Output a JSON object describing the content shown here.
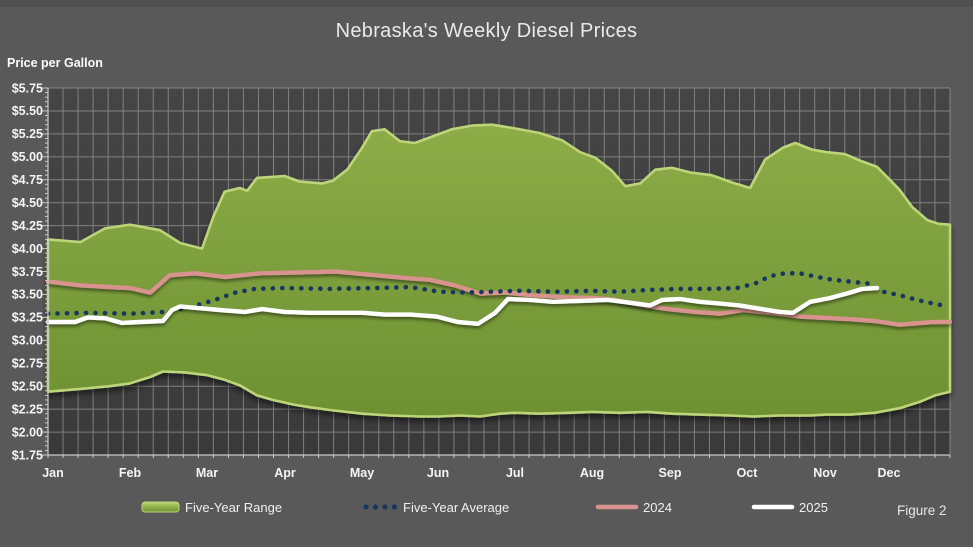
{
  "header": {
    "title": "Nebraska's Weekly Diesel Prices"
  },
  "figure_label": "Figure 2",
  "chart_data": {
    "type": "area",
    "title": "Nebraska's Weekly Diesel Prices",
    "ylabel": "Price per Gallon",
    "figure_label": "Figure 2",
    "x_unit": "month position (0 = start of Jan, 12 = right edge of plot, late December)",
    "month_labels": [
      "Jan",
      "Feb",
      "Mar",
      "Apr",
      "May",
      "Jun",
      "Jul",
      "Aug",
      "Sep",
      "Oct",
      "Nov",
      "Dec"
    ],
    "ylim": [
      1.75,
      5.75
    ],
    "y_tick_step": 0.25,
    "y_tick_labels": [
      "$5.75",
      "$5.50",
      "$5.25",
      "$5.00",
      "$4.75",
      "$4.50",
      "$4.25",
      "$4.00",
      "$3.75",
      "$3.50",
      "$3.25",
      "$3.00",
      "$2.75",
      "$2.50",
      "$2.25",
      "$2.00",
      "$1.75"
    ],
    "grid": "on",
    "legend_position": "bottom",
    "colors": {
      "background": "#595959",
      "plot_background": "#3d3d3d",
      "gridline": "#a9a9a9",
      "range_fill": "#7ca03c",
      "range_edge": "#bdd57a",
      "average": "#17375e",
      "y2024": "#d9938f",
      "y2025": "#ffffff",
      "axis_text": "#f5f5f5"
    },
    "series": [
      {
        "name": "Five-Year Range",
        "kind": "band",
        "fill_color": "#7ca03c",
        "edge_color": "#bdd57a",
        "max": [
          [
            0,
            4.1
          ],
          [
            0.43,
            4.07
          ],
          [
            0.76,
            4.22
          ],
          [
            1.09,
            4.26
          ],
          [
            1.49,
            4.2
          ],
          [
            1.76,
            4.06
          ],
          [
            2.05,
            4.0
          ],
          [
            2.2,
            4.35
          ],
          [
            2.35,
            4.62
          ],
          [
            2.55,
            4.66
          ],
          [
            2.65,
            4.63
          ],
          [
            2.78,
            4.77
          ],
          [
            3.15,
            4.79
          ],
          [
            3.35,
            4.73
          ],
          [
            3.65,
            4.71
          ],
          [
            3.79,
            4.74
          ],
          [
            3.98,
            4.86
          ],
          [
            4.18,
            5.1
          ],
          [
            4.31,
            5.28
          ],
          [
            4.48,
            5.3
          ],
          [
            4.68,
            5.17
          ],
          [
            4.88,
            5.15
          ],
          [
            5.11,
            5.22
          ],
          [
            5.37,
            5.3
          ],
          [
            5.64,
            5.34
          ],
          [
            5.91,
            5.35
          ],
          [
            6.21,
            5.31
          ],
          [
            6.54,
            5.26
          ],
          [
            6.84,
            5.18
          ],
          [
            7.08,
            5.05
          ],
          [
            7.28,
            4.99
          ],
          [
            7.5,
            4.85
          ],
          [
            7.68,
            4.68
          ],
          [
            7.88,
            4.71
          ],
          [
            8.08,
            4.86
          ],
          [
            8.3,
            4.88
          ],
          [
            8.54,
            4.83
          ],
          [
            8.83,
            4.8
          ],
          [
            9.1,
            4.72
          ],
          [
            9.34,
            4.66
          ],
          [
            9.54,
            4.97
          ],
          [
            9.78,
            5.1
          ],
          [
            9.94,
            5.15
          ],
          [
            10.16,
            5.08
          ],
          [
            10.36,
            5.05
          ],
          [
            10.6,
            5.03
          ],
          [
            10.83,
            4.95
          ],
          [
            11.03,
            4.89
          ],
          [
            11.2,
            4.75
          ],
          [
            11.33,
            4.64
          ],
          [
            11.5,
            4.45
          ],
          [
            11.7,
            4.31
          ],
          [
            11.85,
            4.27
          ],
          [
            12,
            4.26
          ]
        ],
        "min": [
          [
            0,
            2.44
          ],
          [
            0.43,
            2.47
          ],
          [
            0.82,
            2.5
          ],
          [
            1.09,
            2.53
          ],
          [
            1.36,
            2.6
          ],
          [
            1.53,
            2.66
          ],
          [
            1.82,
            2.65
          ],
          [
            2.12,
            2.62
          ],
          [
            2.35,
            2.57
          ],
          [
            2.55,
            2.51
          ],
          [
            2.78,
            2.4
          ],
          [
            2.99,
            2.35
          ],
          [
            3.26,
            2.3
          ],
          [
            3.49,
            2.27
          ],
          [
            3.75,
            2.24
          ],
          [
            4.18,
            2.2
          ],
          [
            4.55,
            2.18
          ],
          [
            4.95,
            2.17
          ],
          [
            5.19,
            2.17
          ],
          [
            5.48,
            2.18
          ],
          [
            5.75,
            2.17
          ],
          [
            6.01,
            2.2
          ],
          [
            6.21,
            2.21
          ],
          [
            6.54,
            2.2
          ],
          [
            6.94,
            2.21
          ],
          [
            7.24,
            2.22
          ],
          [
            7.61,
            2.21
          ],
          [
            7.97,
            2.22
          ],
          [
            8.3,
            2.2
          ],
          [
            8.67,
            2.19
          ],
          [
            9.07,
            2.18
          ],
          [
            9.38,
            2.17
          ],
          [
            9.74,
            2.18
          ],
          [
            10.14,
            2.18
          ],
          [
            10.36,
            2.19
          ],
          [
            10.67,
            2.19
          ],
          [
            11.0,
            2.21
          ],
          [
            11.33,
            2.26
          ],
          [
            11.6,
            2.33
          ],
          [
            11.8,
            2.4
          ],
          [
            12,
            2.44
          ]
        ]
      },
      {
        "name": "Five-Year Average",
        "kind": "dotted-line",
        "color": "#17375e",
        "points": [
          [
            0,
            3.29
          ],
          [
            0.56,
            3.3
          ],
          [
            1.09,
            3.29
          ],
          [
            1.56,
            3.31
          ],
          [
            1.89,
            3.36
          ],
          [
            2.22,
            3.44
          ],
          [
            2.49,
            3.52
          ],
          [
            2.75,
            3.56
          ],
          [
            3.15,
            3.57
          ],
          [
            3.75,
            3.56
          ],
          [
            4.35,
            3.57
          ],
          [
            4.82,
            3.58
          ],
          [
            5.21,
            3.53
          ],
          [
            5.55,
            3.52
          ],
          [
            5.88,
            3.53
          ],
          [
            6.28,
            3.54
          ],
          [
            6.74,
            3.53
          ],
          [
            7.21,
            3.54
          ],
          [
            7.61,
            3.53
          ],
          [
            8.01,
            3.55
          ],
          [
            8.41,
            3.56
          ],
          [
            8.81,
            3.56
          ],
          [
            9.17,
            3.57
          ],
          [
            9.41,
            3.62
          ],
          [
            9.61,
            3.7
          ],
          [
            9.8,
            3.73
          ],
          [
            10.0,
            3.73
          ],
          [
            10.24,
            3.69
          ],
          [
            10.44,
            3.66
          ],
          [
            10.67,
            3.64
          ],
          [
            10.9,
            3.62
          ],
          [
            11.11,
            3.53
          ],
          [
            11.34,
            3.49
          ],
          [
            11.56,
            3.44
          ],
          [
            11.78,
            3.4
          ],
          [
            11.97,
            3.37
          ]
        ]
      },
      {
        "name": "2024",
        "kind": "line",
        "color": "#d9938f",
        "points": [
          [
            0,
            3.64
          ],
          [
            0.43,
            3.6
          ],
          [
            0.82,
            3.58
          ],
          [
            1.09,
            3.57
          ],
          [
            1.36,
            3.52
          ],
          [
            1.62,
            3.71
          ],
          [
            1.96,
            3.73
          ],
          [
            2.35,
            3.69
          ],
          [
            2.82,
            3.73
          ],
          [
            3.35,
            3.74
          ],
          [
            3.82,
            3.75
          ],
          [
            4.22,
            3.72
          ],
          [
            4.48,
            3.7
          ],
          [
            4.75,
            3.68
          ],
          [
            5.08,
            3.66
          ],
          [
            5.41,
            3.6
          ],
          [
            5.75,
            3.51
          ],
          [
            6.08,
            3.52
          ],
          [
            6.48,
            3.49
          ],
          [
            6.88,
            3.47
          ],
          [
            7.28,
            3.46
          ],
          [
            7.54,
            3.44
          ],
          [
            7.92,
            3.38
          ],
          [
            8.25,
            3.34
          ],
          [
            8.61,
            3.31
          ],
          [
            8.94,
            3.29
          ],
          [
            9.25,
            3.33
          ],
          [
            9.61,
            3.3
          ],
          [
            10.0,
            3.26
          ],
          [
            10.67,
            3.23
          ],
          [
            11.0,
            3.21
          ],
          [
            11.33,
            3.17
          ],
          [
            11.77,
            3.2
          ],
          [
            12,
            3.2
          ]
        ]
      },
      {
        "name": "2025",
        "kind": "line",
        "color": "#ffffff",
        "points": [
          [
            0,
            3.2
          ],
          [
            0.36,
            3.2
          ],
          [
            0.53,
            3.25
          ],
          [
            0.76,
            3.24
          ],
          [
            0.98,
            3.19
          ],
          [
            1.22,
            3.2
          ],
          [
            1.53,
            3.21
          ],
          [
            1.65,
            3.33
          ],
          [
            1.76,
            3.37
          ],
          [
            2.02,
            3.35
          ],
          [
            2.29,
            3.33
          ],
          [
            2.62,
            3.31
          ],
          [
            2.85,
            3.34
          ],
          [
            3.15,
            3.31
          ],
          [
            3.49,
            3.3
          ],
          [
            3.88,
            3.3
          ],
          [
            4.19,
            3.3
          ],
          [
            4.48,
            3.28
          ],
          [
            4.82,
            3.28
          ],
          [
            5.17,
            3.26
          ],
          [
            5.45,
            3.2
          ],
          [
            5.72,
            3.18
          ],
          [
            5.95,
            3.3
          ],
          [
            6.12,
            3.45
          ],
          [
            6.41,
            3.44
          ],
          [
            6.72,
            3.42
          ],
          [
            7.08,
            3.43
          ],
          [
            7.45,
            3.44
          ],
          [
            7.74,
            3.41
          ],
          [
            8.01,
            3.38
          ],
          [
            8.17,
            3.44
          ],
          [
            8.41,
            3.45
          ],
          [
            8.67,
            3.42
          ],
          [
            8.94,
            3.4
          ],
          [
            9.2,
            3.38
          ],
          [
            9.5,
            3.34
          ],
          [
            9.74,
            3.31
          ],
          [
            9.91,
            3.3
          ],
          [
            10.14,
            3.42
          ],
          [
            10.4,
            3.46
          ],
          [
            10.67,
            3.52
          ],
          [
            10.83,
            3.56
          ],
          [
            11.03,
            3.57
          ]
        ]
      }
    ]
  }
}
